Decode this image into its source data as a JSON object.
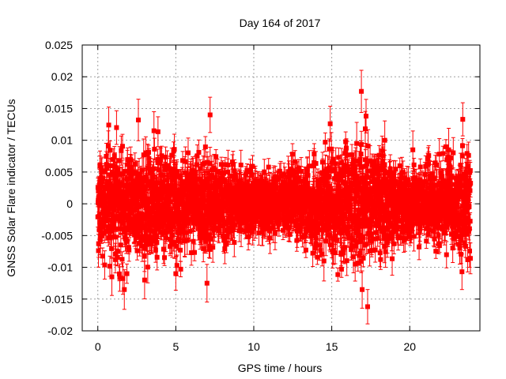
{
  "chart_data": {
    "type": "scatter",
    "title": "Day 164 of 2017",
    "xlabel": "GPS time / hours",
    "ylabel": "GNSS Solar Flare indicator / TECUs",
    "xlim": [
      -1,
      24.5
    ],
    "ylim": [
      -0.02,
      0.025
    ],
    "x_ticks": [
      0,
      5,
      10,
      15,
      20
    ],
    "x_tick_labels": [
      "0",
      "5",
      "10",
      "15",
      "20"
    ],
    "y_ticks": [
      -0.02,
      -0.015,
      -0.01,
      -0.005,
      0,
      0.005,
      0.01,
      0.015,
      0.02,
      0.025
    ],
    "y_tick_labels": [
      "-0.02",
      "-0.015",
      "-0.01",
      "-0.005",
      "0",
      "0.005",
      "0.01",
      "0.015",
      "0.02",
      "0.025"
    ],
    "grid": true,
    "series_color": "#ff0000",
    "series": [
      {
        "name": "indicator",
        "x_range": [
          0,
          23.9
        ],
        "samples_per_hour": 120,
        "noise_envelope": [
          [
            0,
            0.0042
          ],
          [
            2,
            0.004
          ],
          [
            5,
            0.0038
          ],
          [
            7,
            0.0036
          ],
          [
            9,
            0.0026
          ],
          [
            11,
            0.0022
          ],
          [
            13,
            0.0028
          ],
          [
            15,
            0.0036
          ],
          [
            17,
            0.0042
          ],
          [
            18.5,
            0.0033
          ],
          [
            20,
            0.0024
          ],
          [
            22,
            0.0032
          ],
          [
            23.9,
            0.0042
          ]
        ],
        "error_bar_size": [
          0.001,
          0.0026
        ],
        "highlighted_points": [
          {
            "x": 16.9,
            "y": 0.0177
          },
          {
            "x": 17.3,
            "y": -0.0162
          },
          {
            "x": 17.2,
            "y": 0.0138
          },
          {
            "x": 16.95,
            "y": -0.0135
          },
          {
            "x": 17.15,
            "y": 0.0118
          },
          {
            "x": 14.9,
            "y": 0.0126
          },
          {
            "x": 23.4,
            "y": 0.0133
          },
          {
            "x": 23.35,
            "y": -0.0107
          },
          {
            "x": 7.2,
            "y": 0.014
          },
          {
            "x": 2.6,
            "y": 0.0132
          },
          {
            "x": 0.7,
            "y": 0.0124
          },
          {
            "x": 1.2,
            "y": 0.012
          },
          {
            "x": 3.6,
            "y": 0.0115
          },
          {
            "x": 7.0,
            "y": -0.0125
          },
          {
            "x": 3.0,
            "y": -0.012
          },
          {
            "x": 1.7,
            "y": -0.0135
          },
          {
            "x": 0.9,
            "y": -0.0115
          },
          {
            "x": 5.0,
            "y": -0.011
          },
          {
            "x": 16.6,
            "y": 0.0095
          },
          {
            "x": 18.4,
            "y": 0.01
          },
          {
            "x": 16.5,
            "y": -0.0095
          },
          {
            "x": 14.5,
            "y": -0.009
          },
          {
            "x": 20.2,
            "y": 0.0085
          },
          {
            "x": 22.5,
            "y": 0.0085
          }
        ]
      }
    ]
  }
}
